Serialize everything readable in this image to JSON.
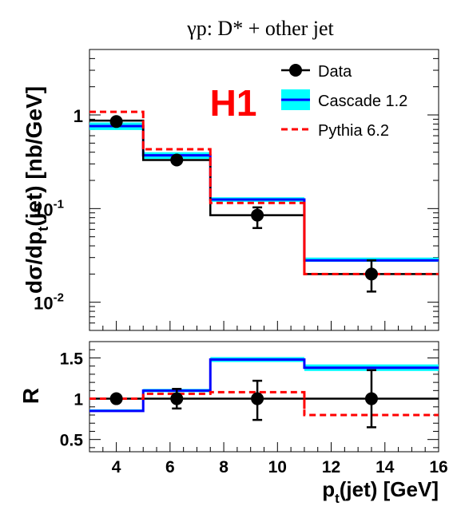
{
  "title": "γp:  D* + other jet",
  "experiment_label": "H1",
  "chart_data": [
    {
      "type": "histogram",
      "panel": "top",
      "scale": "log",
      "title": "γp:  D* + other jet",
      "ylabel": "dσ/dpt(jet)  [nb/GeV]",
      "ylabel_main": "dσ/dp",
      "ylabel_sub": "t",
      "ylabel_rest": "(jet)  [nb/GeV]",
      "xlim": [
        3,
        16
      ],
      "ylim": [
        0.005,
        5
      ],
      "y_tick_labels": [
        {
          "value": 1,
          "base": "1",
          "exp": ""
        },
        {
          "value": 0.1,
          "base": "10",
          "exp": "-1"
        },
        {
          "value": 0.01,
          "base": "10",
          "exp": "-2"
        }
      ],
      "bin_edges": [
        3,
        5,
        7.5,
        11,
        16
      ],
      "series": [
        {
          "name": "Data",
          "kind": "points",
          "color": "#000000",
          "x": [
            4,
            6.25,
            9.25,
            13.5
          ],
          "y": [
            0.85,
            0.33,
            0.085,
            0.02
          ],
          "yerr_low": [
            0.08,
            0.04,
            0.023,
            0.007
          ],
          "yerr_high": [
            0.08,
            0.04,
            0.018,
            0.008
          ]
        },
        {
          "name": "Cascade 1.2",
          "kind": "step",
          "color": "#0000ff",
          "band_color": "#00ffff",
          "values": [
            0.76,
            0.37,
            0.125,
            0.028
          ],
          "band_low": [
            0.69,
            0.34,
            0.118,
            0.027
          ],
          "band_high": [
            0.83,
            0.4,
            0.132,
            0.03
          ]
        },
        {
          "name": "Pythia 6.2",
          "kind": "step-dashed",
          "color": "#ff0000",
          "values": [
            1.08,
            0.43,
            0.115,
            0.02
          ]
        },
        {
          "name": "",
          "kind": "step-data",
          "color": "#000000",
          "values": [
            0.87,
            0.33,
            0.085,
            0.02
          ]
        }
      ],
      "legend": [
        {
          "label": "Data",
          "kind": "points",
          "color": "#000000"
        },
        {
          "label": "Cascade 1.2",
          "kind": "band",
          "color": "#0000ff",
          "band_color": "#00ffff"
        },
        {
          "label": "Pythia 6.2",
          "kind": "dashed",
          "color": "#ff0000"
        }
      ],
      "legend_position": "top-right"
    },
    {
      "type": "histogram",
      "panel": "bottom",
      "scale": "linear",
      "ylabel": "R",
      "xlabel": "pt(jet) [GeV]",
      "xlabel_main": "p",
      "xlabel_sub": "t",
      "xlabel_rest": "(jet) [GeV]",
      "xlim": [
        3,
        16
      ],
      "ylim": [
        0.35,
        1.7
      ],
      "x_ticks": [
        4,
        6,
        8,
        10,
        12,
        14,
        16
      ],
      "y_ticks": [
        0.5,
        1,
        1.5
      ],
      "y_tick_labels": [
        "0.5",
        "1",
        "1.5"
      ],
      "bin_edges": [
        3,
        5,
        7.5,
        11,
        16
      ],
      "series": [
        {
          "name": "Data",
          "kind": "points",
          "color": "#000000",
          "x": [
            4,
            6.25,
            9.25,
            13.5
          ],
          "y": [
            1.0,
            1.0,
            1.0,
            1.0
          ],
          "yerr_low": [
            0.05,
            0.12,
            0.26,
            0.35
          ],
          "yerr_high": [
            0.05,
            0.12,
            0.22,
            0.35
          ]
        },
        {
          "name": "Cascade 1.2",
          "kind": "step",
          "color": "#0000ff",
          "band_color": "#00ffff",
          "values": [
            0.85,
            1.1,
            1.48,
            1.38
          ],
          "band_low": [
            0.84,
            1.08,
            1.45,
            1.34
          ],
          "band_high": [
            0.87,
            1.12,
            1.51,
            1.42
          ]
        },
        {
          "name": "Pythia 6.2",
          "kind": "step-dashed",
          "color": "#ff0000",
          "values": [
            1.0,
            1.06,
            1.08,
            0.8
          ]
        }
      ],
      "reference_line": 1
    }
  ]
}
